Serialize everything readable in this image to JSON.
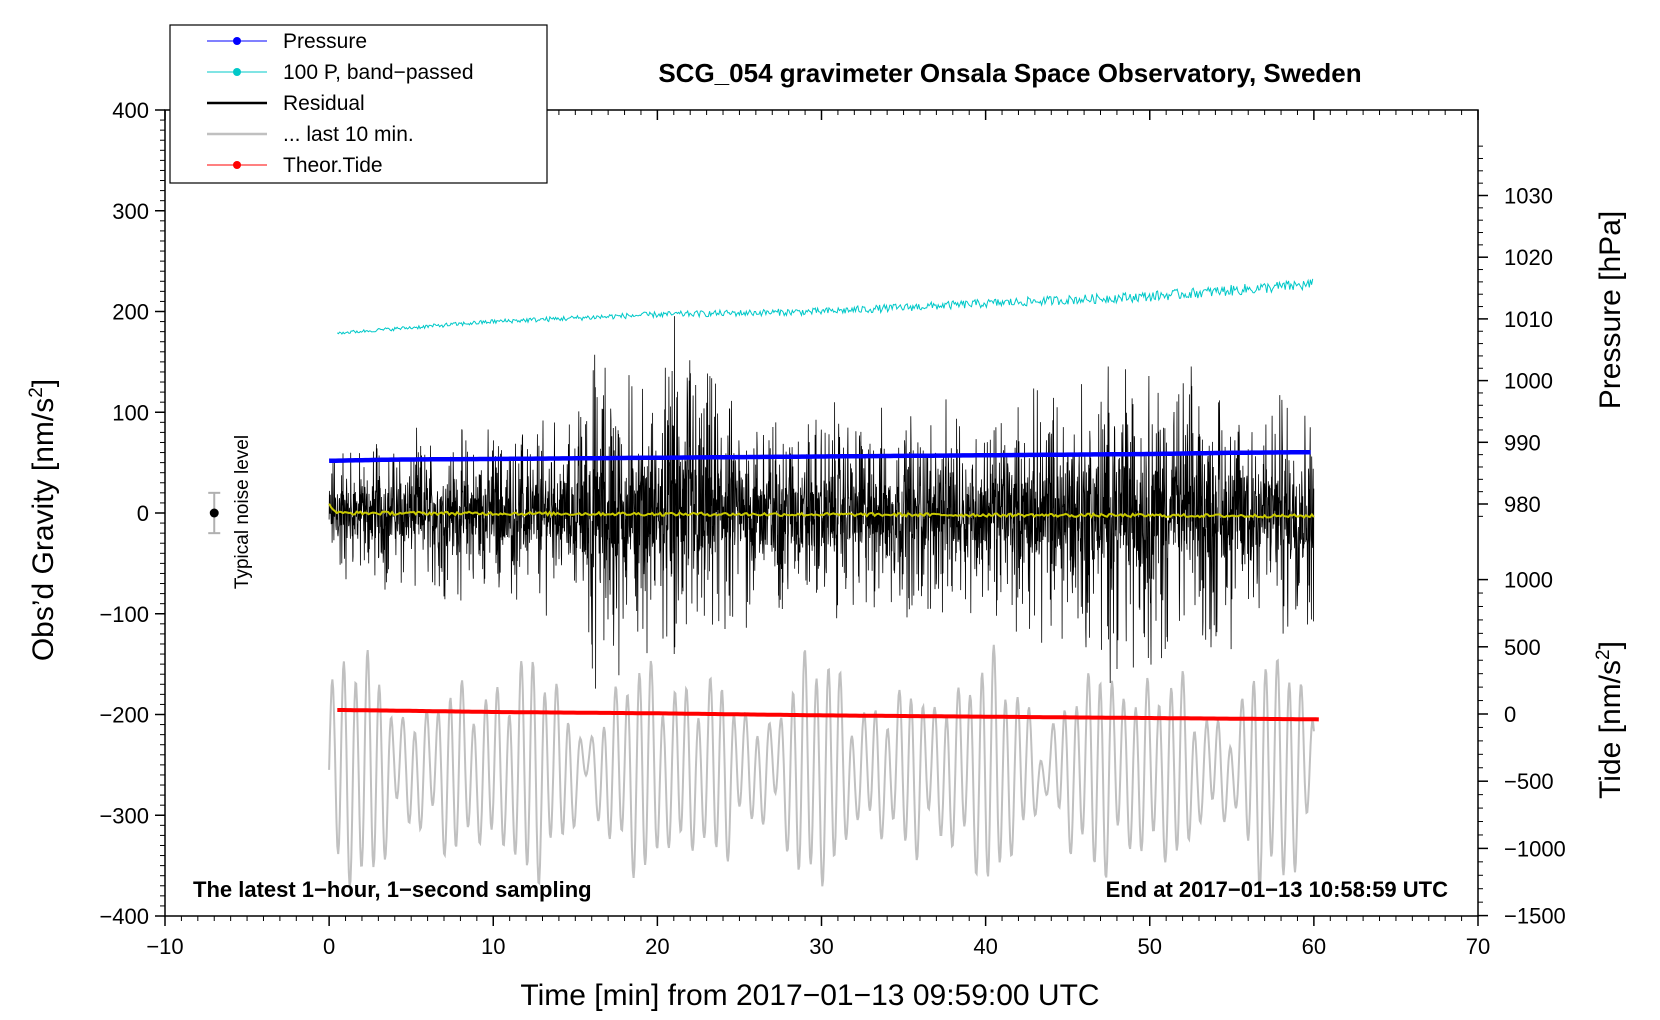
{
  "chart_data": {
    "type": "line",
    "title": "SCG_054 gravimeter Onsala Space Observatory, Sweden",
    "xlabel": "Time [min] from 2017−01−13 09:59:00 UTC",
    "ylabel": "Obs’d Gravity [nm/s",
    "ylabel_sup": "2",
    "ylabel_close": "]",
    "y2label": "Pressure [hPa]",
    "y3label": "Tide [nm/s",
    "y3label_sup": "2",
    "y3label_close": "]",
    "xlim": [
      -10,
      70
    ],
    "ylim": [
      -400,
      400
    ],
    "y2lim": [
      970,
      1040
    ],
    "y3range": [
      -1500,
      1000
    ],
    "x_ticks": [
      -10,
      0,
      10,
      20,
      30,
      40,
      50,
      60,
      70
    ],
    "x_tick_labels": [
      "−10",
      "0",
      "10",
      "20",
      "30",
      "40",
      "50",
      "60",
      "70"
    ],
    "y_ticks": [
      400,
      300,
      200,
      100,
      0,
      -100,
      -200,
      -300,
      -400
    ],
    "y_tick_labels": [
      "400",
      "300",
      "200",
      "100",
      "0",
      "−100",
      "−200",
      "−300",
      "−400"
    ],
    "pressure_ticks": [
      1030,
      1020,
      1010,
      1000,
      990,
      980
    ],
    "pressure_tick_labels": [
      "1030",
      "1020",
      "1010",
      "1000",
      "990",
      "980"
    ],
    "tide_ticks": [
      1000,
      500,
      0,
      -500,
      -1000,
      -1500
    ],
    "tide_tick_labels": [
      "1000",
      "500",
      "0",
      "−500",
      "−1000",
      "−1500"
    ],
    "note_left": "The latest 1−hour, 1−second sampling",
    "note_right": "End at 2017−01−13 10:58:59 UTC",
    "noise_label": "Typical noise level",
    "noise_bar": {
      "x": -7,
      "center": 0,
      "half_range": 20
    },
    "legend": [
      {
        "label": "Pressure",
        "color": "#0000ff",
        "marker": true
      },
      {
        "label": "100 P, band−passed",
        "color": "#00c8c8",
        "marker": true
      },
      {
        "label": "Residual",
        "color": "#000000",
        "marker": false
      },
      {
        "label": "... last 10 min.",
        "color": "#c0c0c0",
        "marker": false
      },
      {
        "label": "Theor.Tide",
        "color": "#ff0000",
        "marker": true
      }
    ],
    "series": [
      {
        "name": "Pressure",
        "axis": "pressure_hPa",
        "color": "#0000ff",
        "x": [
          0,
          4,
          10,
          20,
          30,
          40,
          50,
          55,
          60
        ],
        "y": [
          987.0,
          987.2,
          987.3,
          987.5,
          987.7,
          987.9,
          988.1,
          988.3,
          988.4
        ]
      },
      {
        "name": "100 P, band−passed",
        "axis": "gravity_nm_s2",
        "color": "#00c8c8",
        "x": [
          0,
          5,
          10,
          20,
          30,
          40,
          50,
          60
        ],
        "y": [
          178,
          184,
          190,
          197,
          200,
          208,
          215,
          227
        ]
      },
      {
        "name": "Residual",
        "axis": "gravity_nm_s2",
        "color": "#000000",
        "x": [
          0,
          15,
          16,
          20,
          21,
          25,
          40,
          48,
          60
        ],
        "y_envelope": [
          60,
          80,
          150,
          100,
          170,
          95,
          85,
          135,
          100
        ]
      },
      {
        "name": "Residual (smoothed)",
        "axis": "gravity_nm_s2",
        "color": "#c8c800",
        "x": [
          0,
          0.5,
          60
        ],
        "y": [
          8,
          0,
          -3
        ]
      },
      {
        "name": "... last 10 min.",
        "axis": "gravity_nm_s2",
        "color": "#c0c0c0",
        "x": [
          0,
          60
        ],
        "center": -255,
        "amplitude_range": [
          30,
          110
        ]
      },
      {
        "name": "Theor.Tide",
        "axis": "tide_nm_s2",
        "color": "#ff0000",
        "x": [
          0.5,
          4,
          10,
          20,
          30,
          40,
          50,
          60.5
        ],
        "y": [
          30,
          25,
          15,
          5,
          -10,
          -20,
          -30,
          -40
        ]
      }
    ]
  }
}
